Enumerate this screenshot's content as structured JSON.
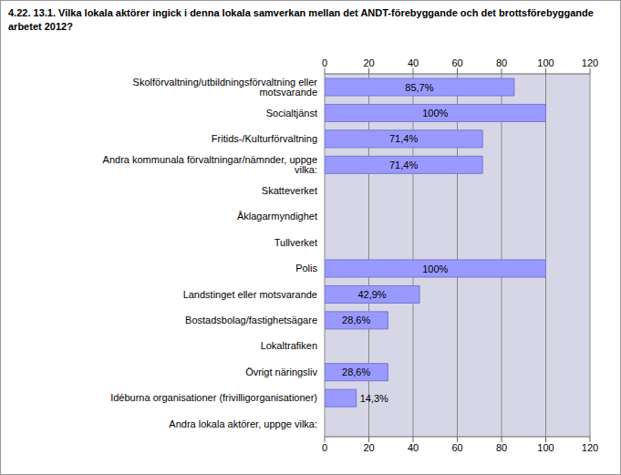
{
  "chart_data": {
    "type": "bar",
    "title": "4.22. 13.1. Vilka lokala aktörer ingick i denna lokala samverkan mellan det ANDT-förebyggande och det brottsförebyggande arbetet 2012?",
    "orientation": "horizontal",
    "categories": [
      "Skolförvaltning/utbildningsförvaltning eller motsvarande",
      "Socialtjänst",
      "Fritids-/Kulturförvaltning",
      "Andra kommunala förvaltningar/nämnder, uppge vilka:",
      "Skatteverket",
      "Åklagarmyndighet",
      "Tullverket",
      "Polis",
      "Landstinget eller motsvarande",
      "Bostadsbolag/fastighetsägare",
      "Lokaltrafiken",
      "Övrigt näringsliv",
      "Idéburna organisationer (frivilligorganisationer)",
      "Andra lokala aktörer, uppge vilka:"
    ],
    "values": [
      85.7,
      100,
      71.4,
      71.4,
      null,
      null,
      null,
      100,
      42.9,
      28.6,
      null,
      28.6,
      14.3,
      null
    ],
    "value_labels": [
      "85,7%",
      "100%",
      "71,4%",
      "71,4%",
      null,
      null,
      null,
      "100%",
      "42,9%",
      "28,6%",
      null,
      "28,6%",
      "14,3%",
      null
    ],
    "data_labels": true,
    "color": "#9999ff",
    "xlim": [
      0,
      120
    ],
    "xticks": [
      0,
      20,
      40,
      60,
      80,
      100,
      120
    ],
    "grid": true
  }
}
